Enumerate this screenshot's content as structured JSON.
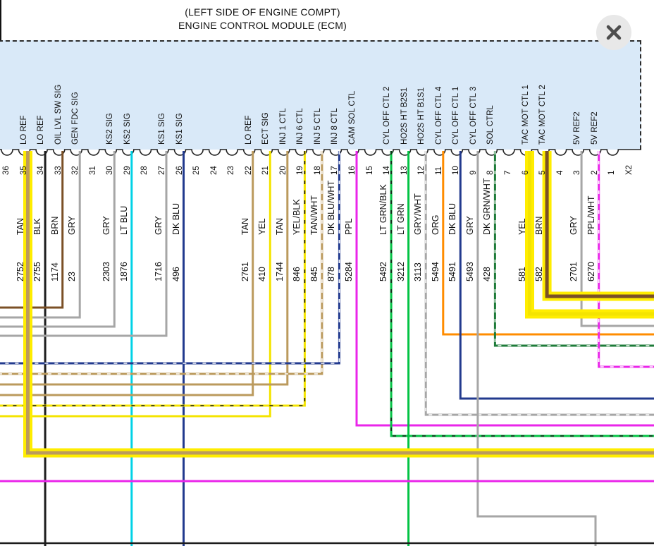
{
  "header": {
    "line1": "(LEFT SIDE OF ENGINE COMPT)",
    "line2": "ENGINE CONTROL MODULE (ECM)"
  },
  "connector": {
    "id": "X2",
    "body_color": "#d9e9f8"
  },
  "close_button": {
    "icon": "x-icon"
  },
  "pins": [
    {
      "pin": "36",
      "label": "",
      "color": "",
      "circuit": ""
    },
    {
      "pin": "35",
      "label": "LO REF",
      "color": "TAN",
      "circuit": "2752",
      "highlighted": true
    },
    {
      "pin": "34",
      "label": "LO REF",
      "color": "BLK",
      "circuit": "2755"
    },
    {
      "pin": "33",
      "label": "OIL LVL SW SIG",
      "color": "BRN",
      "circuit": "1174"
    },
    {
      "pin": "32",
      "label": "GEN FDC SIG",
      "color": "GRY",
      "circuit": "23"
    },
    {
      "pin": "31",
      "label": "",
      "color": "",
      "circuit": ""
    },
    {
      "pin": "30",
      "label": "KS2 SIG",
      "color": "GRY",
      "circuit": "2303"
    },
    {
      "pin": "29",
      "label": "KS2 SIG",
      "color": "LT BLU",
      "circuit": "1876"
    },
    {
      "pin": "28",
      "label": "",
      "color": "",
      "circuit": ""
    },
    {
      "pin": "27",
      "label": "KS1 SIG",
      "color": "GRY",
      "circuit": "1716"
    },
    {
      "pin": "26",
      "label": "KS1 SIG",
      "color": "DK BLU",
      "circuit": "496"
    },
    {
      "pin": "25",
      "label": "",
      "color": "",
      "circuit": ""
    },
    {
      "pin": "24",
      "label": "",
      "color": "",
      "circuit": ""
    },
    {
      "pin": "23",
      "label": "",
      "color": "",
      "circuit": ""
    },
    {
      "pin": "22",
      "label": "LO REF",
      "color": "TAN",
      "circuit": "2761"
    },
    {
      "pin": "21",
      "label": "ECT SIG",
      "color": "YEL",
      "circuit": "410"
    },
    {
      "pin": "20",
      "label": "INJ 1 CTL",
      "color": "TAN",
      "circuit": "1744"
    },
    {
      "pin": "19",
      "label": "INJ 6 CTL",
      "color": "YEL/BLK",
      "circuit": "846"
    },
    {
      "pin": "18",
      "label": "INJ 5 CTL",
      "color": "TAN/WHT",
      "circuit": "845"
    },
    {
      "pin": "17",
      "label": "INJ 8 CTL",
      "color": "DK BLU/WHT",
      "circuit": "878"
    },
    {
      "pin": "16",
      "label": "CAM SOL CTL",
      "color": "PPL",
      "circuit": "5284"
    },
    {
      "pin": "15",
      "label": "",
      "color": "",
      "circuit": ""
    },
    {
      "pin": "14",
      "label": "CYL OFF CTL 2",
      "color": "LT GRN/BLK",
      "circuit": "5492"
    },
    {
      "pin": "13",
      "label": "HO2S HT B2S1",
      "color": "LT GRN",
      "circuit": "3212"
    },
    {
      "pin": "12",
      "label": "HO2S HT B1S1",
      "color": "GRY/WHT",
      "circuit": "3113"
    },
    {
      "pin": "11",
      "label": "CYL OFF CTL 4",
      "color": "ORG",
      "circuit": "5494"
    },
    {
      "pin": "10",
      "label": "CYL OFF CTL 1",
      "color": "DK BLU",
      "circuit": "5491"
    },
    {
      "pin": "9",
      "label": "CYL OFF CTL 3",
      "color": "GRY",
      "circuit": "5493"
    },
    {
      "pin": "8",
      "label": "SOL CTRL",
      "color": "DK GRN/WHT",
      "circuit": "428"
    },
    {
      "pin": "7",
      "label": "",
      "color": "",
      "circuit": ""
    },
    {
      "pin": "6",
      "label": "TAC MOT CTL 1",
      "color": "YEL",
      "circuit": "581",
      "highlighted": true
    },
    {
      "pin": "5",
      "label": "TAC MOT CTL 2",
      "color": "BRN",
      "circuit": "582",
      "highlighted": true
    },
    {
      "pin": "4",
      "label": "",
      "color": "",
      "circuit": ""
    },
    {
      "pin": "3",
      "label": "5V REF2",
      "color": "GRY",
      "circuit": "2701"
    },
    {
      "pin": "2",
      "label": "5V REF2",
      "color": "PPL/WHT",
      "circuit": "6270"
    },
    {
      "pin": "1",
      "label": "",
      "color": "",
      "circuit": ""
    }
  ],
  "crossing_wires": [
    {
      "color": "PPL"
    },
    {
      "color": "BLK"
    }
  ],
  "wire_palette": {
    "TAN": "#bb9a5d",
    "BLK": "#1c1c1c",
    "BRN": "#7b5026",
    "GRY": "#a6a6a6",
    "LT BLU": "#00d2e6",
    "DK BLU": "#223a8e",
    "YEL": "#f4e400",
    "PPL": "#ea25ea",
    "LT GRN": "#02c344",
    "ORG": "#ff8c00",
    "DK GRN": "#1e7b39",
    "WHT": "#ffffff",
    "highlight": "#ffed00"
  }
}
